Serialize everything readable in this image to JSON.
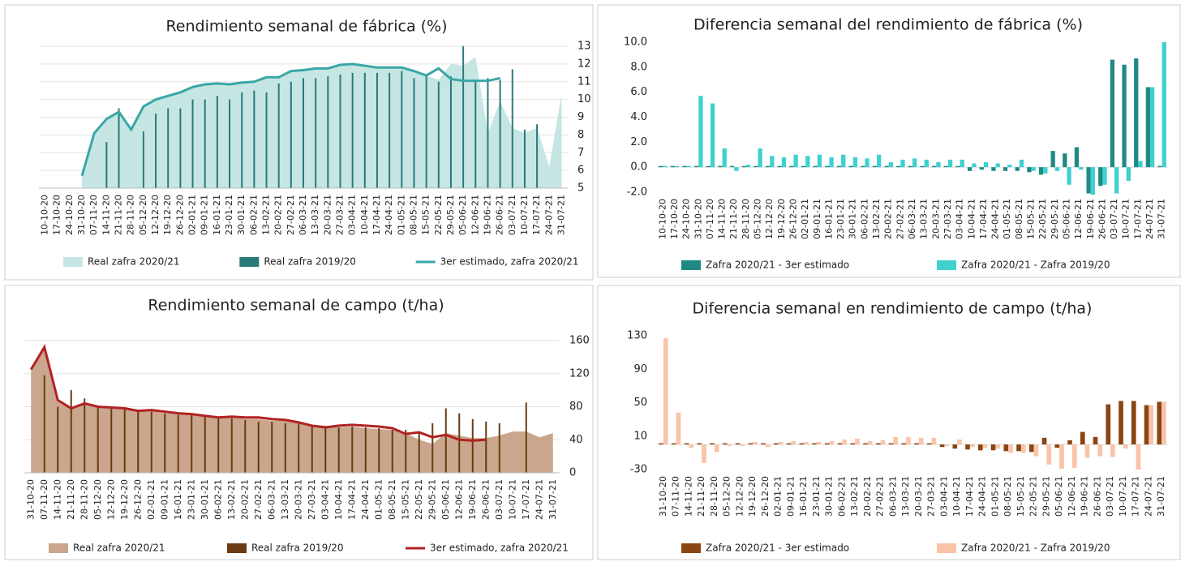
{
  "chart_data": [
    {
      "type": "combo",
      "title": "Rendimiento semanal de fábrica (%)",
      "title_color": "#2a9d8f",
      "yaxis_side": "right",
      "grid": true,
      "categories": [
        "10-10-20",
        "17-10-20",
        "24-10-20",
        "31-10-20",
        "07-11-20",
        "14-11-20",
        "21-11-20",
        "28-11-20",
        "05-12-20",
        "12-12-20",
        "19-12-20",
        "26-12-20",
        "02-01-21",
        "09-01-21",
        "16-01-21",
        "23-01-21",
        "30-01-21",
        "06-02-21",
        "13-02-21",
        "20-02-21",
        "27-02-21",
        "06-03-21",
        "13-03-21",
        "20-03-21",
        "27-03-21",
        "03-04-21",
        "10-04-21",
        "17-04-21",
        "24-04-21",
        "01-05-21",
        "08-05-21",
        "15-05-21",
        "22-05-21",
        "29-05-21",
        "05-06-21",
        "12-06-21",
        "19-06-21",
        "26-06-21",
        "03-07-21",
        "10-07-21",
        "17-07-21",
        "24-07-21",
        "31-07-21"
      ],
      "ylim": [
        5,
        13
      ],
      "yticks": [
        5,
        6,
        7,
        8,
        9,
        10,
        11,
        12,
        13
      ],
      "series": [
        {
          "name": "Real zafra 2020/21",
          "style": "area",
          "color": "#c5e6e3",
          "values": [
            null,
            null,
            null,
            5.7,
            8.1,
            8.9,
            9.3,
            8.3,
            9.6,
            10,
            10.2,
            10.4,
            10.7,
            10.85,
            10.9,
            10.85,
            10.95,
            11,
            11.25,
            11.25,
            11.6,
            11.65,
            11.75,
            11.75,
            11.95,
            12,
            11.9,
            11.8,
            11.8,
            11.8,
            11.6,
            11.35,
            11.1,
            12,
            11.9,
            12.4,
            8.1,
            9.9,
            8.4,
            8.1,
            8.4,
            6.2,
            10.3
          ]
        },
        {
          "name": "Real zafra 2019/20",
          "style": "bar",
          "color": "#2a7a7a",
          "values": [
            null,
            null,
            null,
            null,
            null,
            7.6,
            9.5,
            null,
            8.2,
            9.2,
            9.5,
            9.5,
            10,
            10,
            10.2,
            10,
            10.4,
            10.5,
            10.4,
            10.9,
            11,
            11.2,
            11.2,
            11.3,
            11.4,
            11.5,
            11.5,
            11.5,
            11.5,
            11.6,
            11.2,
            11.4,
            11,
            11.3,
            13,
            11,
            11.2,
            11.1,
            11.7,
            8.3,
            8.6,
            null,
            null
          ]
        },
        {
          "name": "3er estimado, zafra 2020/21",
          "style": "line",
          "color": "#3aa6a6",
          "values": [
            null,
            null,
            null,
            5.7,
            8.1,
            8.9,
            9.3,
            8.3,
            9.6,
            10,
            10.2,
            10.4,
            10.7,
            10.85,
            10.9,
            10.85,
            10.95,
            11,
            11.25,
            11.25,
            11.6,
            11.65,
            11.75,
            11.75,
            11.95,
            12,
            11.9,
            11.8,
            11.8,
            11.8,
            11.6,
            11.35,
            11.75,
            11.15,
            11.05,
            11.05,
            11.05,
            11.2,
            null,
            null,
            null,
            null,
            null
          ]
        }
      ]
    },
    {
      "type": "bar",
      "title": "Diferencia semanal del rendimiento de fábrica (%)",
      "title_color": "#2a9d8f",
      "yaxis_side": "left",
      "grid": false,
      "categories": [
        "10-10-20",
        "17-10-20",
        "24-10-20",
        "31-10-20",
        "07-11-20",
        "14-11-20",
        "21-11-20",
        "28-11-20",
        "05-12-20",
        "12-12-20",
        "19-12-20",
        "26-12-20",
        "02-01-21",
        "09-01-21",
        "16-01-21",
        "23-01-21",
        "30-01-21",
        "06-02-21",
        "13-02-21",
        "20-02-21",
        "27-02-21",
        "06-03-21",
        "13-03-21",
        "20-03-21",
        "27-03-21",
        "03-04-21",
        "10-04-21",
        "17-04-21",
        "24-04-21",
        "01-05-21",
        "08-05-21",
        "15-05-21",
        "22-05-21",
        "29-05-21",
        "05-06-21",
        "12-06-21",
        "19-06-21",
        "26-06-21",
        "03-07-21",
        "10-07-21",
        "17-07-21",
        "24-07-21",
        "31-07-21"
      ],
      "ylim": [
        -2,
        10
      ],
      "yticks": [
        {
          "value": -2,
          "label": "-2.0"
        },
        {
          "value": 0,
          "label": "0.0"
        },
        {
          "value": 2,
          "label": "2.0"
        },
        {
          "value": 4,
          "label": "4.0"
        },
        {
          "value": 6,
          "label": "6.0"
        },
        {
          "value": 8,
          "label": "8.0"
        },
        {
          "value": 10,
          "label": "10.0"
        }
      ],
      "series": [
        {
          "name": "Zafra 2020/21 - 3er estimado",
          "color": "#1f8a84",
          "values": [
            0,
            0,
            0,
            0,
            0,
            0,
            0,
            0,
            0,
            0,
            0,
            0,
            0,
            0,
            0,
            0,
            0,
            0,
            0,
            0,
            0,
            0,
            0,
            0,
            0,
            0,
            -0.3,
            -0.2,
            -0.3,
            -0.3,
            -0.3,
            -0.4,
            -0.6,
            1.3,
            1.1,
            1.6,
            -2.1,
            -1.5,
            8.6,
            8.2,
            8.7,
            6.4,
            0
          ]
        },
        {
          "name": "Zafra 2020/21 - Zafra 2019/20",
          "color": "#3fd0d0",
          "values": [
            0,
            0,
            0,
            5.7,
            5.1,
            1.5,
            -0.3,
            0.2,
            1.5,
            0.9,
            0.8,
            1,
            0.9,
            1,
            0.8,
            1,
            0.8,
            0.7,
            1,
            0.4,
            0.6,
            0.7,
            0.6,
            0.4,
            0.6,
            0.6,
            0.3,
            0.4,
            0.3,
            0.2,
            0.6,
            -0.3,
            -0.5,
            -0.3,
            -1.4,
            -0.2,
            -2.2,
            -1.4,
            -2.1,
            -1.1,
            0.5,
            6.4,
            10
          ]
        }
      ]
    },
    {
      "type": "combo",
      "title": "Rendimiento semanal de campo (t/ha)",
      "title_color": "#c0571a",
      "yaxis_side": "right",
      "grid": true,
      "categories": [
        "31-10-20",
        "07-11-20",
        "14-11-20",
        "21-11-20",
        "28-11-20",
        "05-12-20",
        "12-12-20",
        "19-12-20",
        "26-12-20",
        "02-01-21",
        "09-01-21",
        "16-01-21",
        "23-01-21",
        "30-01-21",
        "06-02-21",
        "13-02-21",
        "20-02-21",
        "27-02-21",
        "06-03-21",
        "13-03-21",
        "20-03-21",
        "27-03-21",
        "03-04-21",
        "10-04-21",
        "17-04-21",
        "24-04-21",
        "01-05-21",
        "08-05-21",
        "15-05-21",
        "22-05-21",
        "29-05-21",
        "05-06-21",
        "12-06-21",
        "19-06-21",
        "26-06-21",
        "03-07-21",
        "10-07-21",
        "17-07-21",
        "24-07-21",
        "31-07-21"
      ],
      "ylim": [
        0,
        160
      ],
      "yticks": [
        0,
        40,
        80,
        120,
        160
      ],
      "series": [
        {
          "name": "Real zafra 2020/21",
          "style": "area",
          "color": "#c9a68d",
          "values": [
            125,
            152,
            88,
            78,
            85,
            80,
            78,
            77,
            75,
            75,
            72,
            72,
            70,
            70,
            68,
            68,
            65,
            65,
            63,
            63,
            62,
            58,
            57,
            55,
            56,
            54,
            53,
            52,
            48,
            40,
            35,
            48,
            45,
            42,
            42,
            45,
            50,
            50,
            43,
            48
          ]
        },
        {
          "name": "Real zafra 2019/20",
          "style": "bar",
          "color": "#6b3a10",
          "values": [
            null,
            118,
            80,
            100,
            90,
            80,
            80,
            78,
            76,
            74,
            72,
            70,
            70,
            68,
            66,
            66,
            64,
            62,
            62,
            60,
            60,
            56,
            55,
            55,
            56,
            55,
            54,
            52,
            52,
            50,
            60,
            78,
            72,
            65,
            62,
            60,
            null,
            85,
            null,
            null
          ]
        },
        {
          "name": "3er estimado, zafra 2020/21",
          "style": "line",
          "color": "#b22222",
          "values": [
            125,
            152,
            88,
            78,
            84,
            80,
            79,
            78,
            75,
            76,
            74,
            72,
            71,
            69,
            67,
            68,
            67,
            67,
            65,
            64,
            61,
            57,
            55,
            57,
            58,
            57,
            56,
            54,
            47,
            49,
            43,
            46,
            40,
            39,
            40,
            null,
            null,
            null,
            null,
            null
          ]
        }
      ]
    },
    {
      "type": "bar",
      "title": "Diferencia semanal en rendimiento de campo (t/ha)",
      "title_color": "#c0571a",
      "yaxis_side": "left",
      "grid": false,
      "categories": [
        "31-10-20",
        "07-11-20",
        "14-11-20",
        "21-11-20",
        "28-11-20",
        "05-12-20",
        "12-12-20",
        "19-12-20",
        "26-12-20",
        "02-01-21",
        "09-01-21",
        "16-01-21",
        "23-01-21",
        "30-01-21",
        "06-02-21",
        "13-02-21",
        "20-02-21",
        "27-02-21",
        "06-03-21",
        "13-03-21",
        "20-03-21",
        "27-03-21",
        "03-04-21",
        "10-04-21",
        "17-04-21",
        "24-04-21",
        "01-05-21",
        "08-05-21",
        "15-05-21",
        "22-05-21",
        "29-05-21",
        "05-06-21",
        "12-06-21",
        "19-06-21",
        "26-06-21",
        "03-07-21",
        "10-07-21",
        "17-07-21",
        "24-07-21",
        "31-07-21"
      ],
      "ylim": [
        -30,
        130
      ],
      "yticks": [
        -30,
        10,
        50,
        90,
        130
      ],
      "series": [
        {
          "name": "Zafra 2020/21 - 3er estimado",
          "color": "#8b4513",
          "values": [
            0,
            0,
            0,
            0,
            0,
            0,
            0,
            0,
            0,
            0,
            0,
            0,
            0,
            0,
            0,
            0,
            0,
            0,
            0,
            0,
            0,
            0,
            -3,
            -5,
            -6,
            -7,
            -7,
            -8,
            -8,
            -9,
            8,
            -4,
            5,
            15,
            9,
            48,
            52,
            52,
            47,
            51
          ]
        },
        {
          "name": "Zafra 2020/21 - Zafra 2019/20",
          "color": "#f9c4a8",
          "values": [
            127,
            38,
            -4,
            -22,
            -9,
            -2,
            -2,
            3,
            -3,
            3,
            4,
            3,
            3,
            4,
            6,
            7,
            4,
            5,
            9,
            9,
            8,
            8,
            -2,
            6,
            -3,
            -4,
            -5,
            -10,
            -10,
            -14,
            -24,
            -29,
            -28,
            -16,
            -14,
            -15,
            -5,
            -30,
            47,
            51
          ]
        }
      ]
    }
  ]
}
